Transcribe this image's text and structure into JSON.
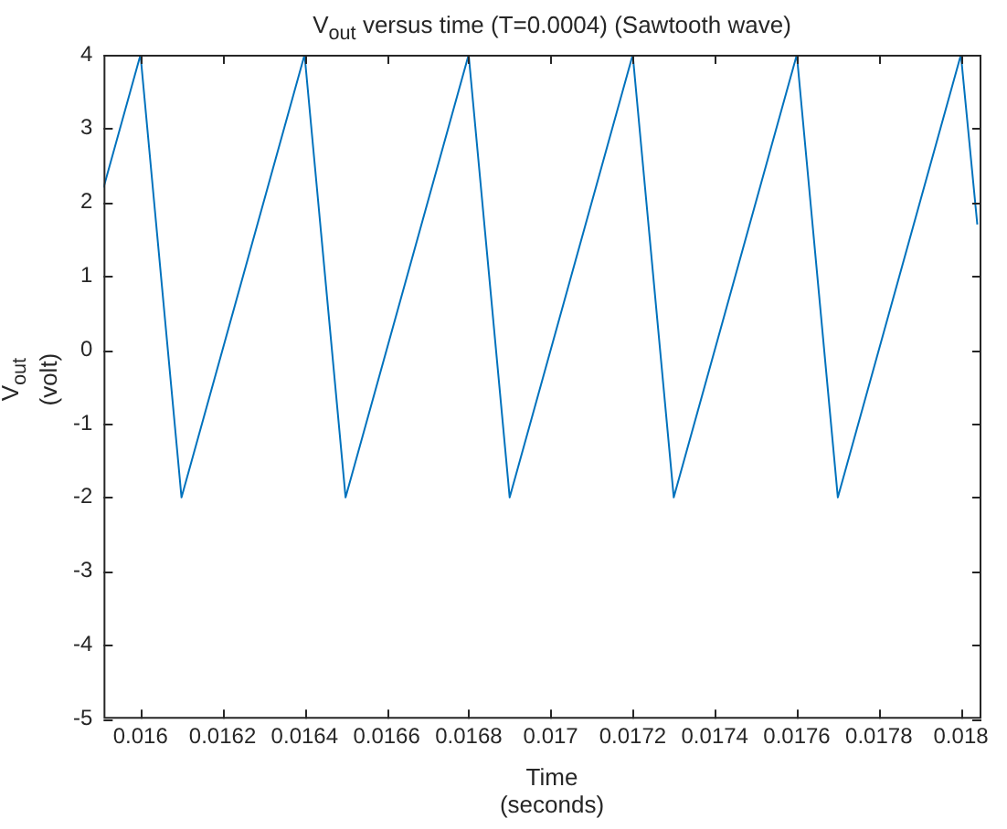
{
  "chart_data": {
    "type": "line",
    "title": "V$_{out}$ versus time (T=0.0004) (Sawtooth wave)",
    "xlabel": "Time\n(seconds)",
    "ylabel": "V$_{out}$\n(volt)",
    "x": [
      0.01591,
      0.016,
      0.0161,
      0.0164,
      0.0165,
      0.0168,
      0.0169,
      0.0172,
      0.0173,
      0.0176,
      0.0177,
      0.018,
      0.01804
    ],
    "series": [
      {
        "color": "#0072bd",
        "values": [
          2.2,
          4,
          -2,
          4,
          -2,
          4,
          -2,
          4,
          -2,
          4,
          -2,
          4,
          1.7
        ]
      }
    ],
    "xlim": [
      0.01591,
      0.01805
    ],
    "xticks": [
      0.016,
      0.0162,
      0.0164,
      0.0166,
      0.0168,
      0.017,
      0.0172,
      0.0174,
      0.0176,
      0.0178,
      0.018
    ],
    "ylim": [
      -5,
      4
    ],
    "yticks": [
      -5,
      -4,
      -3,
      -2,
      -1,
      0,
      1,
      2,
      3,
      4
    ],
    "grid": false,
    "legend": false,
    "marker": "none",
    "line_style": "solid"
  }
}
